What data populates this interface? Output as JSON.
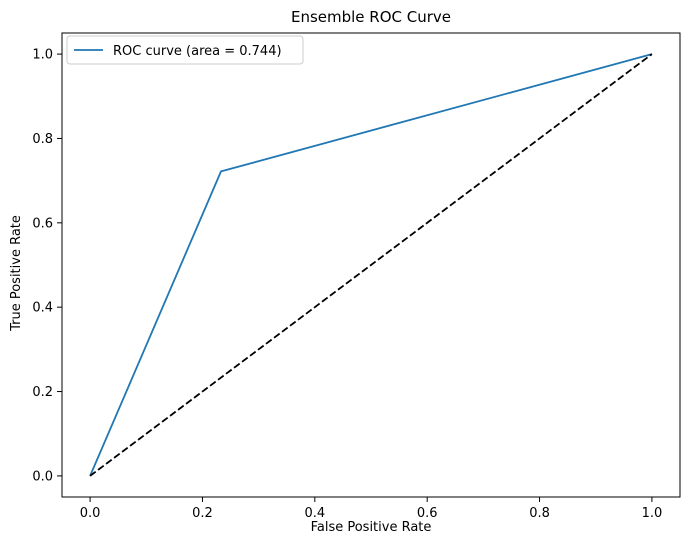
{
  "chart_data": {
    "type": "line",
    "title": "Ensemble ROC Curve",
    "xlabel": "False Positive Rate",
    "ylabel": "True Positive Rate",
    "xlim": [
      -0.05,
      1.05
    ],
    "ylim": [
      -0.05,
      1.05
    ],
    "xticks": [
      "0.0",
      "0.2",
      "0.4",
      "0.6",
      "0.8",
      "1.0"
    ],
    "yticks": [
      "0.0",
      "0.2",
      "0.4",
      "0.6",
      "0.8",
      "1.0"
    ],
    "grid": false,
    "legend_position": "upper-left",
    "series": [
      {
        "name": "ROC curve (area = 0.744)",
        "color": "#1f77b4",
        "style": "solid",
        "x": [
          0.0,
          0.233,
          1.0
        ],
        "y": [
          0.0,
          0.722,
          1.0
        ]
      },
      {
        "color": "#000000",
        "style": "dashed",
        "x": [
          0.0,
          1.0
        ],
        "y": [
          0.0,
          1.0
        ]
      }
    ]
  }
}
